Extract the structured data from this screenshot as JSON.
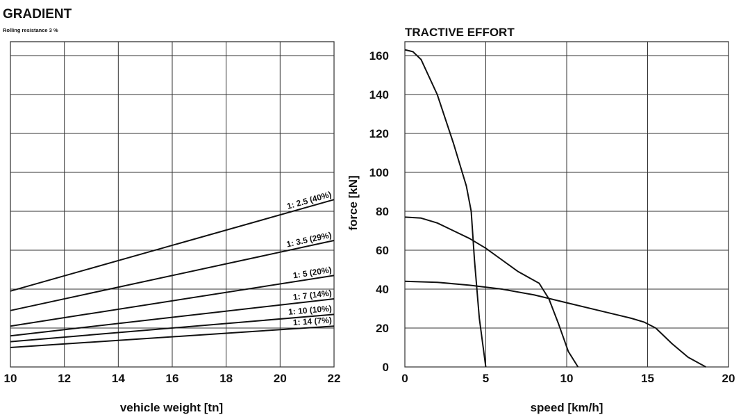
{
  "chart_data": [
    {
      "type": "line",
      "title": "GRADIENT",
      "subtitle": "Rolling resistance 3 %",
      "xlabel": "vehicle weight [tn]",
      "ylabel": "",
      "xlim": [
        10,
        22
      ],
      "ylim": [
        0,
        170
      ],
      "x_ticks": [
        "10",
        "12",
        "14",
        "16",
        "18",
        "20",
        "22"
      ],
      "grid": true,
      "series": [
        {
          "name": "1: 2.5 (40%)",
          "x": [
            10,
            22
          ],
          "y": [
            39,
            86
          ]
        },
        {
          "name": "1: 3.5 (29%)",
          "x": [
            10,
            22
          ],
          "y": [
            29,
            65
          ]
        },
        {
          "name": "1: 5 (20%)",
          "x": [
            10,
            22
          ],
          "y": [
            21,
            47
          ]
        },
        {
          "name": "1: 7 (14%)",
          "x": [
            10,
            22
          ],
          "y": [
            16,
            35
          ]
        },
        {
          "name": "1: 10 (10%)",
          "x": [
            10,
            22
          ],
          "y": [
            13,
            27
          ]
        },
        {
          "name": "1: 14 (7%)",
          "x": [
            10,
            22
          ],
          "y": [
            10,
            21
          ]
        }
      ]
    },
    {
      "type": "line",
      "title": "TRACTIVE EFFORT",
      "xlabel": "speed [km/h]",
      "ylabel": "force [kN]",
      "xlim": [
        0,
        20
      ],
      "ylim": [
        0,
        170
      ],
      "x_ticks": [
        "0",
        "5",
        "10",
        "15",
        "20"
      ],
      "y_ticks": [
        "0",
        "20",
        "40",
        "60",
        "80",
        "100",
        "120",
        "140",
        "160"
      ],
      "grid": true,
      "series": [
        {
          "x": [
            0,
            0.5,
            1,
            2,
            3,
            3.8,
            4.1,
            4.3,
            4.6,
            5.0
          ],
          "y": [
            163,
            162,
            158,
            140,
            115,
            93,
            80,
            55,
            25,
            0
          ]
        },
        {
          "x": [
            0,
            1,
            2,
            3,
            4,
            5,
            6,
            7,
            8.3,
            8.9,
            9.5,
            10.1,
            10.7
          ],
          "y": [
            77,
            76.5,
            74,
            70,
            66,
            61,
            55,
            49,
            43,
            35,
            22,
            8,
            0
          ]
        },
        {
          "x": [
            0,
            2,
            4,
            6,
            8,
            10,
            12,
            14,
            14.8,
            15.5,
            16.5,
            17.5,
            18.6
          ],
          "y": [
            44,
            43.5,
            42,
            40,
            37,
            33,
            29,
            25,
            23,
            20,
            12,
            5,
            0
          ]
        }
      ]
    }
  ]
}
